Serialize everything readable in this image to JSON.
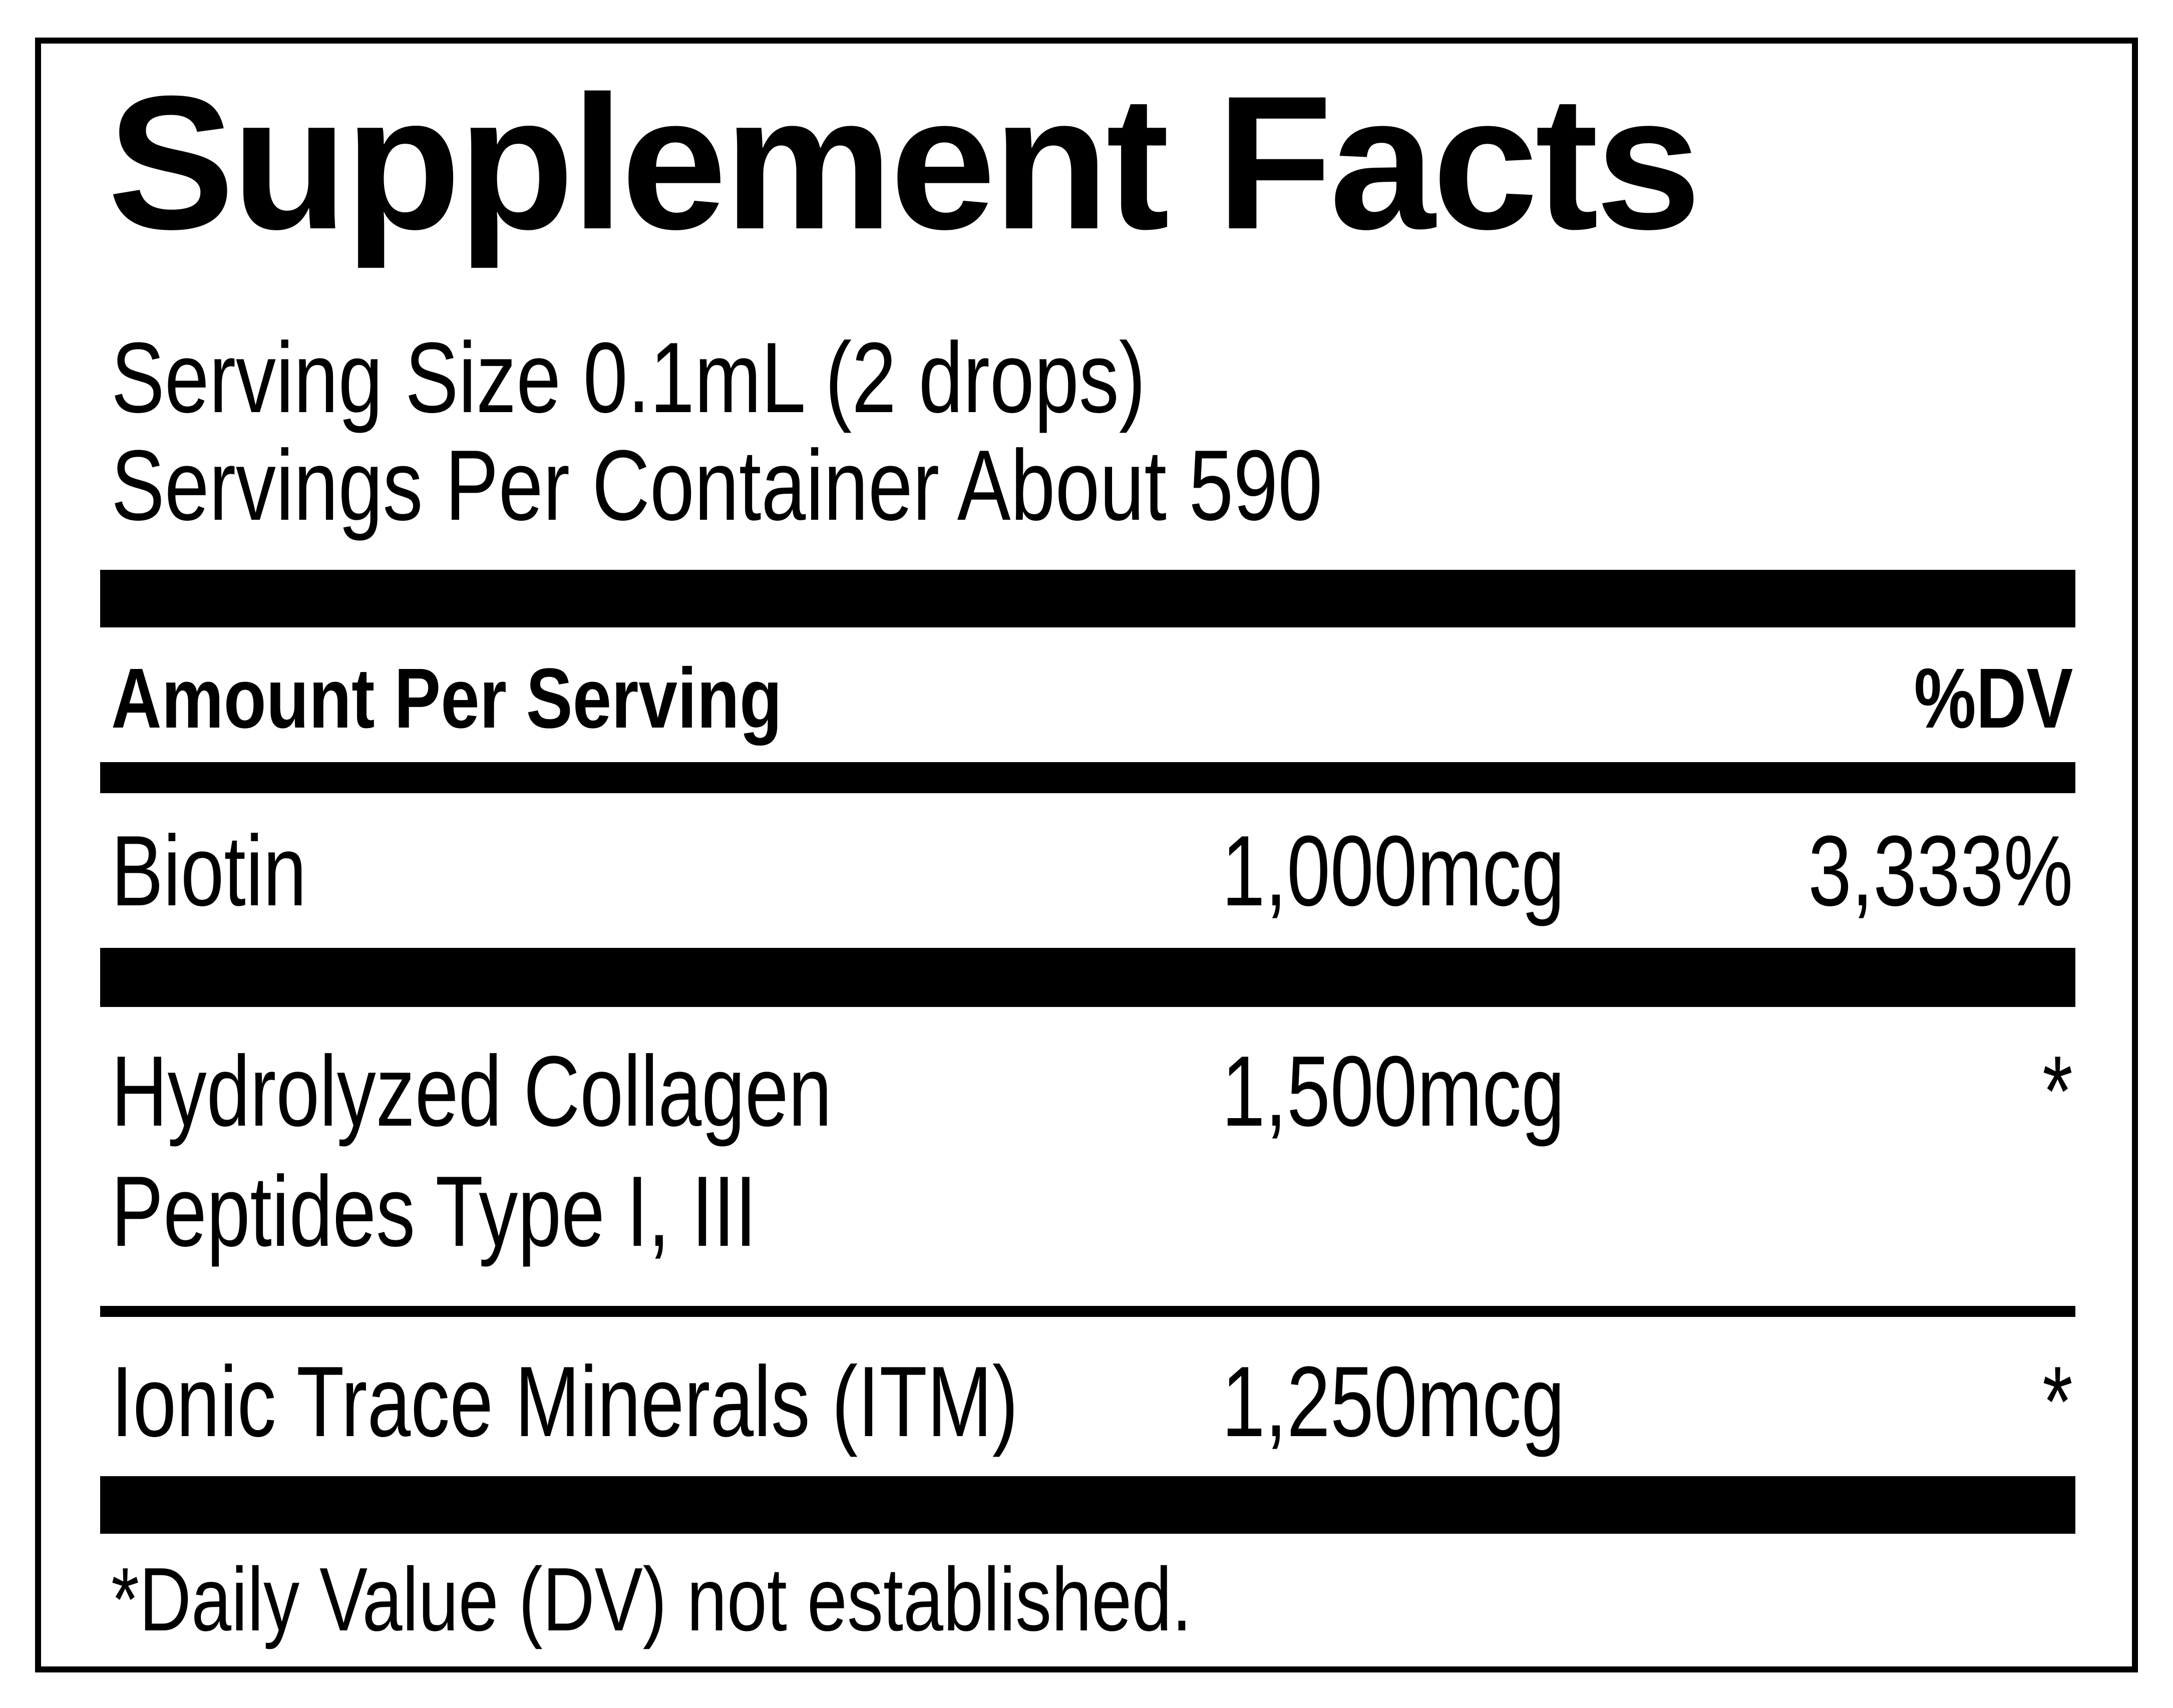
{
  "title": "Supplement Facts",
  "serving_size": "Serving Size 0.1mL (2 drops)",
  "servings_per_container": "Servings Per Container About 590",
  "header": {
    "amount_label": "Amount Per Serving",
    "dv_label": "%DV"
  },
  "nutrients": [
    {
      "name_line1": "Biotin",
      "name_line2": "",
      "amount": "1,000mcg",
      "dv": "3,333%"
    },
    {
      "name_line1": "Hydrolyzed Collagen",
      "name_line2": "Peptides Type I, III",
      "amount": "1,500mcg",
      "dv": "*"
    },
    {
      "name_line1": "Ionic Trace Minerals (ITM)",
      "name_line2": "",
      "amount": "1,250mcg",
      "dv": "*"
    }
  ],
  "footnote": "*Daily Value (DV) not established."
}
